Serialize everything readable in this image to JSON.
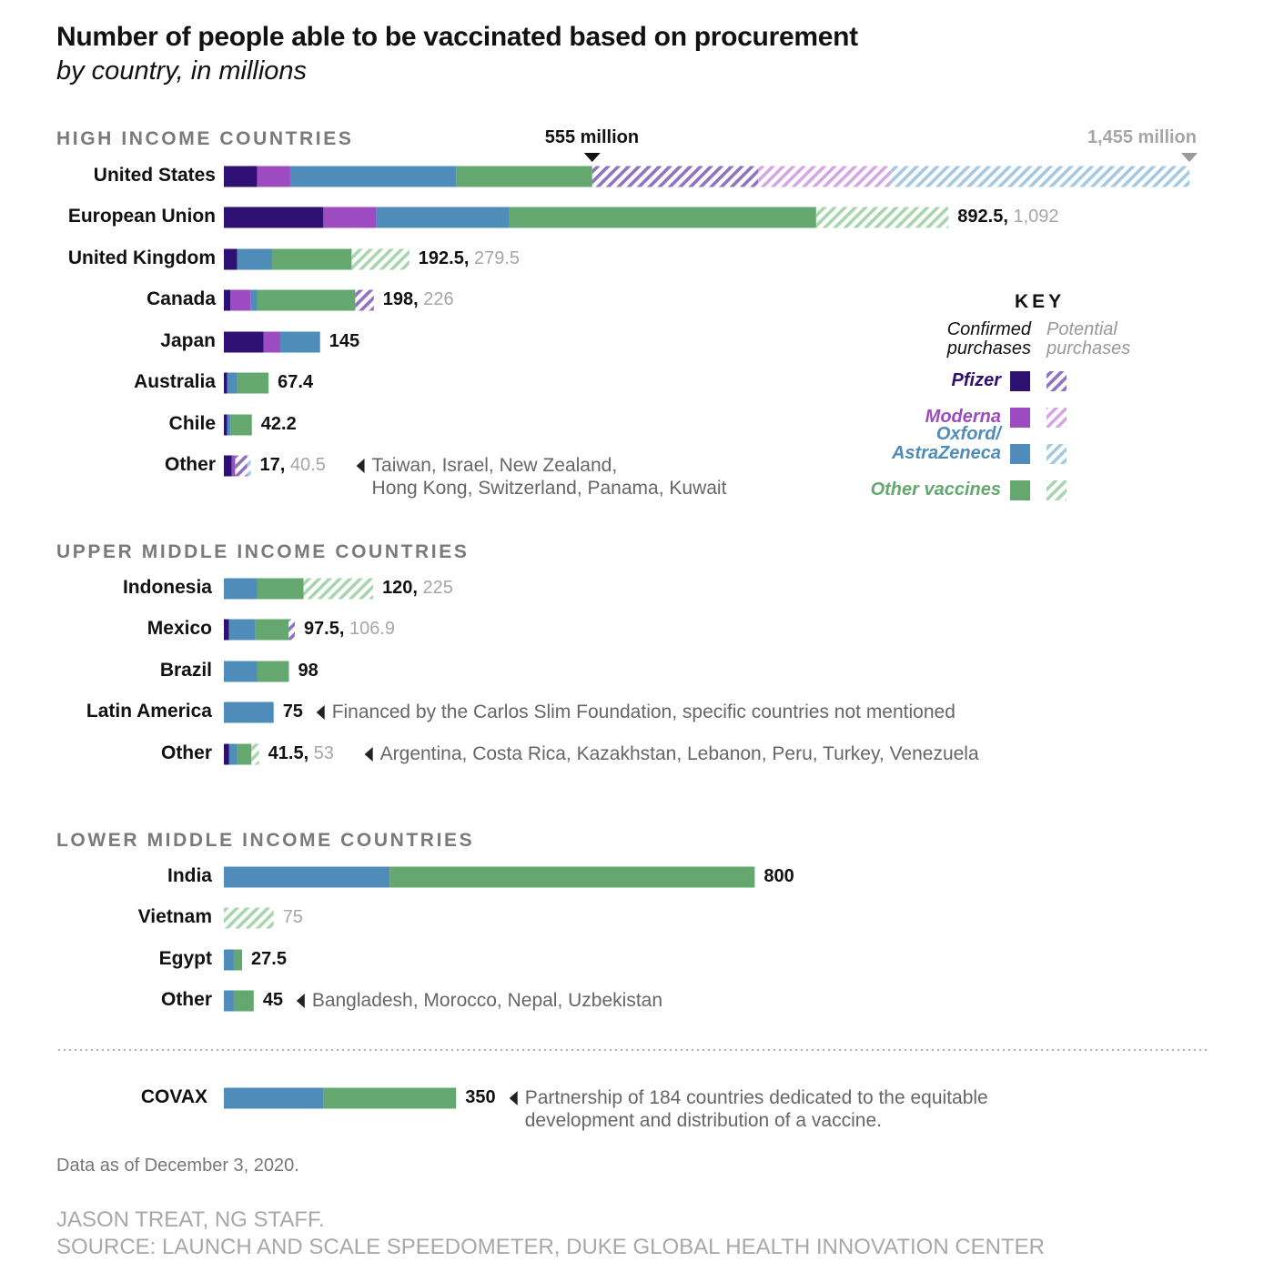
{
  "header": {
    "title": "Number of people able to be vaccinated based on procurement",
    "subtitle": "by country, in millions"
  },
  "markers": {
    "mid": {
      "label": "555 million",
      "value": 555
    },
    "max": {
      "label": "1,455 million",
      "value": 1455
    }
  },
  "key": {
    "title": "KEY",
    "confirmed_label": [
      "Confirmed",
      "purchases"
    ],
    "potential_label": [
      "Potential",
      "purchases"
    ],
    "items": [
      {
        "name": "Pfizer",
        "lines": [
          "Pfizer"
        ],
        "color": "#2e1073",
        "hatch": "#8f72c1"
      },
      {
        "name": "Moderna",
        "lines": [
          "Moderna"
        ],
        "color": "#9c4cc0",
        "hatch": "#d4a6e4"
      },
      {
        "name": "Oxford/AstraZeneca",
        "lines": [
          "Oxford/",
          "AstraZeneca"
        ],
        "color": "#4f8cba",
        "hatch": "#a5c9e2"
      },
      {
        "name": "Other vaccines",
        "lines": [
          "Other vaccines"
        ],
        "color": "#64a86f",
        "hatch": "#a6d5ae"
      }
    ]
  },
  "chart_data": {
    "type": "bar",
    "orientation": "horizontal",
    "stacked": true,
    "units": "millions",
    "series": [
      "Pfizer",
      "Moderna",
      "Oxford/AstraZeneca",
      "Other vaccines"
    ],
    "groups": [
      {
        "name": "HIGH INCOME COUNTRIES",
        "rows": [
          {
            "label": "United States",
            "confirmed": [
              50,
              50,
              250,
              205
            ],
            "potential": [
              250,
              200,
              450,
              0
            ],
            "value_label": "",
            "potential_label": ""
          },
          {
            "label": "European Union",
            "confirmed": [
              150,
              80,
              200,
              462.5
            ],
            "potential": [
              0,
              0,
              0,
              199.5
            ],
            "value_label": "892.5,",
            "potential_label": "1,092"
          },
          {
            "label": "United Kingdom",
            "confirmed": [
              20,
              0,
              52,
              120.5
            ],
            "potential": [
              0,
              0,
              0,
              87
            ],
            "value_label": "192.5,",
            "potential_label": "279.5"
          },
          {
            "label": "Canada",
            "confirmed": [
              10,
              30,
              10,
              148
            ],
            "potential": [
              28,
              0,
              0,
              0
            ],
            "value_label": "198,",
            "potential_label": "226"
          },
          {
            "label": "Japan",
            "confirmed": [
              60,
              25,
              60,
              0
            ],
            "potential": [
              0,
              0,
              0,
              0
            ],
            "value_label": "145",
            "potential_label": ""
          },
          {
            "label": "Australia",
            "confirmed": [
              5,
              0,
              15,
              47.4
            ],
            "potential": [
              0,
              0,
              0,
              0
            ],
            "value_label": "67.4",
            "potential_label": ""
          },
          {
            "label": "Chile",
            "confirmed": [
              5,
              0,
              5,
              32.2
            ],
            "potential": [
              0,
              0,
              0,
              0
            ],
            "value_label": "42.2",
            "potential_label": ""
          },
          {
            "label": "Other",
            "confirmed": [
              12,
              5,
              0,
              0
            ],
            "potential": [
              18,
              0,
              5.5,
              0
            ],
            "value_label": "17,",
            "potential_label": "40.5",
            "note": [
              "Taiwan, Israel, New Zealand,",
              "Hong Kong, Switzerland, Panama, Kuwait"
            ]
          }
        ]
      },
      {
        "name": "UPPER MIDDLE INCOME COUNTRIES",
        "rows": [
          {
            "label": "Indonesia",
            "confirmed": [
              0,
              0,
              50,
              70
            ],
            "potential": [
              0,
              0,
              0,
              105
            ],
            "value_label": "120,",
            "potential_label": "225"
          },
          {
            "label": "Mexico",
            "confirmed": [
              7.5,
              0,
              40,
              50
            ],
            "potential": [
              9.4,
              0,
              0,
              0
            ],
            "value_label": "97.5,",
            "potential_label": "106.9"
          },
          {
            "label": "Brazil",
            "confirmed": [
              0,
              0,
              50,
              48
            ],
            "potential": [
              0,
              0,
              0,
              0
            ],
            "value_label": "98",
            "potential_label": ""
          },
          {
            "label": "Latin America",
            "confirmed": [
              0,
              0,
              75,
              0
            ],
            "potential": [
              0,
              0,
              0,
              0
            ],
            "value_label": "75",
            "potential_label": "",
            "note": [
              "Financed by the Carlos Slim Foundation, specific countries not mentioned"
            ]
          },
          {
            "label": "Other",
            "confirmed": [
              8,
              0,
              12,
              21.5
            ],
            "potential": [
              0,
              0,
              0,
              11.5
            ],
            "value_label": "41.5,",
            "potential_label": "53",
            "note": [
              "Argentina, Costa Rica, Kazakhstan, Lebanon, Peru, Turkey, Venezuela"
            ]
          }
        ]
      },
      {
        "name": "LOWER MIDDLE INCOME COUNTRIES",
        "rows": [
          {
            "label": "India",
            "confirmed": [
              0,
              0,
              250,
              550
            ],
            "potential": [
              0,
              0,
              0,
              0
            ],
            "value_label": "800",
            "potential_label": ""
          },
          {
            "label": "Vietnam",
            "confirmed": [
              0,
              0,
              0,
              0
            ],
            "potential": [
              0,
              0,
              0,
              75
            ],
            "value_label": "",
            "potential_label": "75"
          },
          {
            "label": "Egypt",
            "confirmed": [
              0,
              0,
              15,
              12.5
            ],
            "potential": [
              0,
              0,
              0,
              0
            ],
            "value_label": "27.5",
            "potential_label": ""
          },
          {
            "label": "Other",
            "confirmed": [
              0,
              0,
              15,
              30
            ],
            "potential": [
              0,
              0,
              0,
              0
            ],
            "value_label": "45",
            "potential_label": "",
            "note": [
              "Bangladesh, Morocco, Nepal, Uzbekistan"
            ]
          }
        ]
      },
      {
        "name": "",
        "rows": [
          {
            "label": "COVAX",
            "confirmed": [
              0,
              0,
              150,
              200
            ],
            "potential": [
              0,
              0,
              0,
              0
            ],
            "value_label": "350",
            "potential_label": "",
            "note": [
              "Partnership of 184 countries dedicated to the equitable",
              "development and distribution of a vaccine."
            ]
          }
        ]
      }
    ]
  },
  "footer": {
    "date_note": "Data as of December 3, 2020.",
    "credit": "JASON TREAT, NG STAFF.",
    "source": "SOURCE: LAUNCH AND SCALE SPEEDOMETER, DUKE GLOBAL HEALTH INNOVATION CENTER"
  }
}
